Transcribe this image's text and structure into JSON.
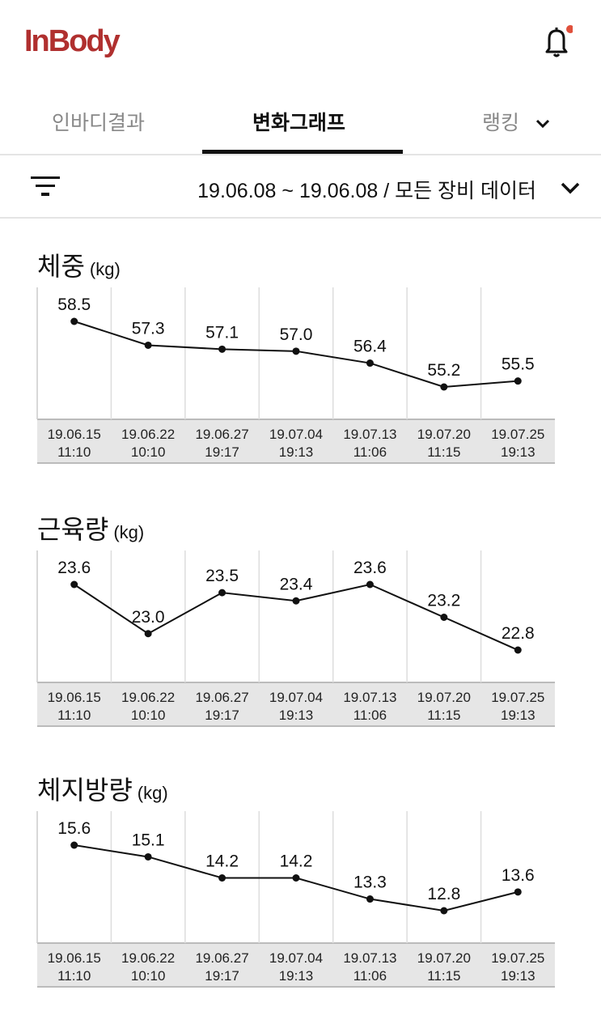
{
  "header": {
    "logo": "InBody",
    "notification_dot_color": "#e0503c",
    "icon": "bell-icon"
  },
  "tabs": [
    {
      "label": "인바디결과",
      "active": false
    },
    {
      "label": "변화그래프",
      "active": true
    },
    {
      "label": "랭킹",
      "active": false,
      "has_dropdown": true
    }
  ],
  "filter": {
    "range_label": "19.06.08 ~ 19.06.08 / 모든 장비 데이터",
    "icon": "filter-icon"
  },
  "chart_data": [
    {
      "type": "line",
      "title": "체중",
      "unit": "(kg)",
      "categories": [
        "19.06.15\n11:10",
        "19.06.22\n10:10",
        "19.06.27\n19:17",
        "19.07.04\n19:13",
        "19.07.13\n11:06",
        "19.07.20\n11:15",
        "19.07.25\n19:13"
      ],
      "values": [
        58.5,
        57.3,
        57.1,
        57.0,
        56.4,
        55.2,
        55.5
      ],
      "grid": true
    },
    {
      "type": "line",
      "title": "근육량",
      "unit": "(kg)",
      "categories": [
        "19.06.15\n11:10",
        "19.06.22\n10:10",
        "19.06.27\n19:17",
        "19.07.04\n19:13",
        "19.07.13\n11:06",
        "19.07.20\n11:15",
        "19.07.25\n19:13"
      ],
      "values": [
        23.6,
        23.0,
        23.5,
        23.4,
        23.6,
        23.2,
        22.8
      ],
      "grid": true
    },
    {
      "type": "line",
      "title": "체지방량",
      "unit": "(kg)",
      "categories": [
        "19.06.15\n11:10",
        "19.06.22\n10:10",
        "19.06.27\n19:17",
        "19.07.04\n19:13",
        "19.07.13\n11:06",
        "19.07.20\n11:15",
        "19.07.25\n19:13"
      ],
      "values": [
        15.6,
        15.1,
        14.2,
        14.2,
        13.3,
        12.8,
        13.6
      ],
      "grid": true
    }
  ]
}
